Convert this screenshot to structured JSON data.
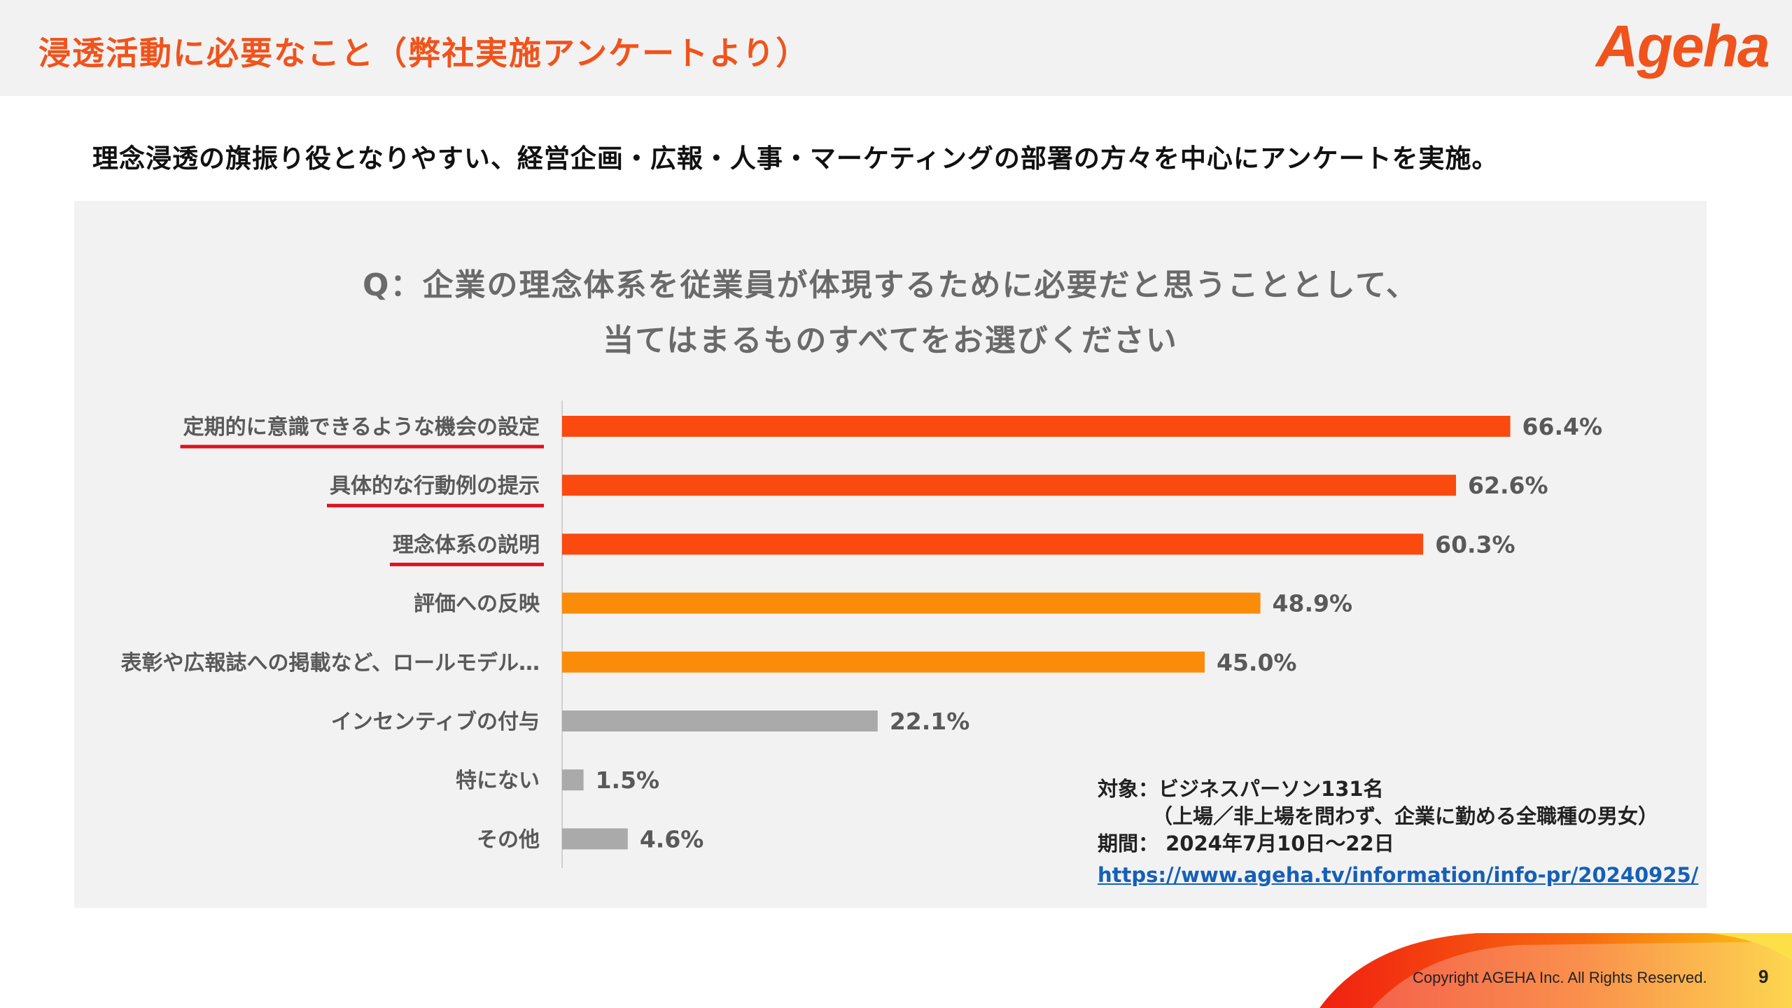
{
  "header": {
    "title": "浸透活動に必要なこと（弊社実施アンケートより）",
    "logo_text": "Ageha"
  },
  "lead_text": "理念浸透の旗振り役となりやすい、経営企画・広報・人事・マーケティングの部署の方々を中心にアンケートを実施。",
  "question": {
    "line1": "Q：企業の理念体系を従業員が体現するために必要だと思うこととして、",
    "line2": "当てはまるものすべてをお選びください"
  },
  "chart_data": {
    "type": "bar",
    "orientation": "horizontal",
    "categories": [
      "定期的に意識できるような機会の設定",
      "具体的な行動例の提示",
      "理念体系の説明",
      "評価への反映",
      "表彰や広報誌への掲載など、ロールモデル…",
      "インセンティブの付与",
      "特にない",
      "その他"
    ],
    "values": [
      66.4,
      62.6,
      60.3,
      48.9,
      45.0,
      22.1,
      1.5,
      4.6
    ],
    "value_labels": [
      "66.4%",
      "62.6%",
      "60.3%",
      "48.9%",
      "45.0%",
      "22.1%",
      "1.5%",
      "4.6%"
    ],
    "bar_colors": [
      "#fa4a10",
      "#fa4a10",
      "#fa4a10",
      "#fb8c0a",
      "#fb8c0a",
      "#aaaaaa",
      "#aaaaaa",
      "#aaaaaa"
    ],
    "underlined_categories": [
      0,
      1,
      2
    ],
    "underline_color": "#e01020",
    "label_color": "#595959",
    "value_color": "#595959",
    "xlim": [
      0,
      100
    ],
    "grid": false,
    "legend": "none"
  },
  "notes": {
    "target_label": "対象：",
    "target_value": "ビジネスパーソン131名",
    "target_detail": "（上場／非上場を問わず、企業に勤める全職種の男女）",
    "period_label": "期間：",
    "period_value": "2024年7月10日〜22日",
    "url": "https://www.ageha.tv/information/info-pr/20240925/"
  },
  "footer": {
    "copyright": "Copyright AGEHA Inc. All Rights Reserved.",
    "page_number": "9"
  },
  "colors": {
    "brand_orange": "#f0531c",
    "panel_gray": "#f2f2f2"
  }
}
